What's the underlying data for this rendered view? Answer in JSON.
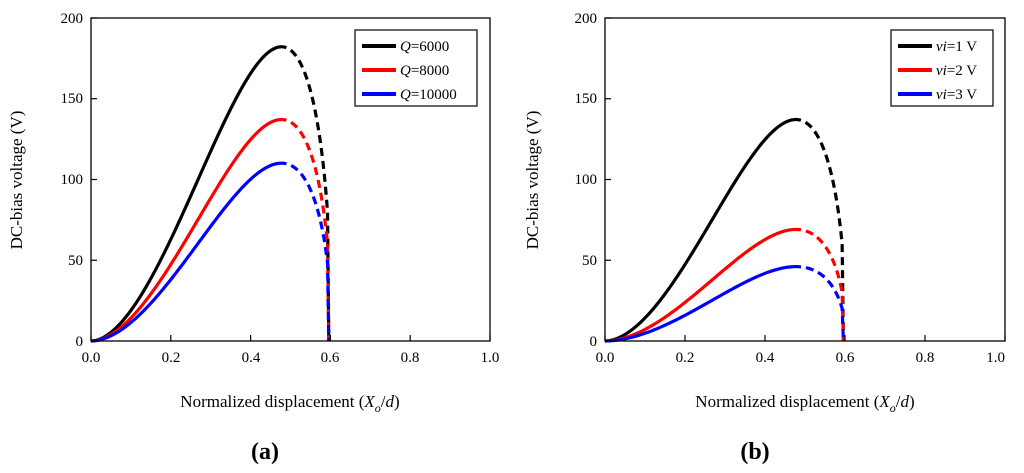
{
  "chart_data": [
    {
      "type": "line",
      "panel_label": "a",
      "xlabel": {
        "prefix": "Normalized displacement (",
        "var": "X",
        "sub": "o",
        "suffix": "/",
        "var2": "d",
        "close": ")"
      },
      "ylabel": "DC-bias voltage (V)",
      "xlim": [
        0,
        1.0
      ],
      "ylim": [
        0,
        200
      ],
      "xticks": [
        "0.0",
        "0.2",
        "0.4",
        "0.6",
        "0.8",
        "1.0"
      ],
      "yticks": [
        "0",
        "50",
        "100",
        "150",
        "200"
      ],
      "legend_position": "top-right",
      "peak_x": 0.47,
      "end_x": 0.596,
      "series": [
        {
          "name": "Q",
          "suffix": "=6000",
          "color": "#000000",
          "peak": 182
        },
        {
          "name": "Q",
          "suffix": "=8000",
          "color": "#ff0000",
          "peak": 137
        },
        {
          "name": "Q",
          "suffix": "=10000",
          "color": "#0000ff",
          "peak": 110
        }
      ],
      "style_note": "solid for x < peak_x, dashed for x > peak_x"
    },
    {
      "type": "line",
      "panel_label": "b",
      "xlabel": {
        "prefix": "Normalized displacement (",
        "var": "X",
        "sub": "o",
        "suffix": "/",
        "var2": "d",
        "close": ")"
      },
      "ylabel": "DC-bias voltage (V)",
      "xlim": [
        0,
        1.0
      ],
      "ylim": [
        0,
        200
      ],
      "xticks": [
        "0.0",
        "0.2",
        "0.4",
        "0.6",
        "0.8",
        "1.0"
      ],
      "yticks": [
        "0",
        "50",
        "100",
        "150",
        "200"
      ],
      "legend_position": "top-right",
      "peak_x": 0.47,
      "end_x": 0.596,
      "series": [
        {
          "name": "vi",
          "suffix": "=1 V",
          "color": "#000000",
          "peak": 137
        },
        {
          "name": "vi",
          "suffix": "=2 V",
          "color": "#ff0000",
          "peak": 69
        },
        {
          "name": "vi",
          "suffix": "=3 V",
          "color": "#0000ff",
          "peak": 46
        }
      ],
      "style_note": "solid for x < peak_x, dashed for x > peak_x"
    }
  ]
}
